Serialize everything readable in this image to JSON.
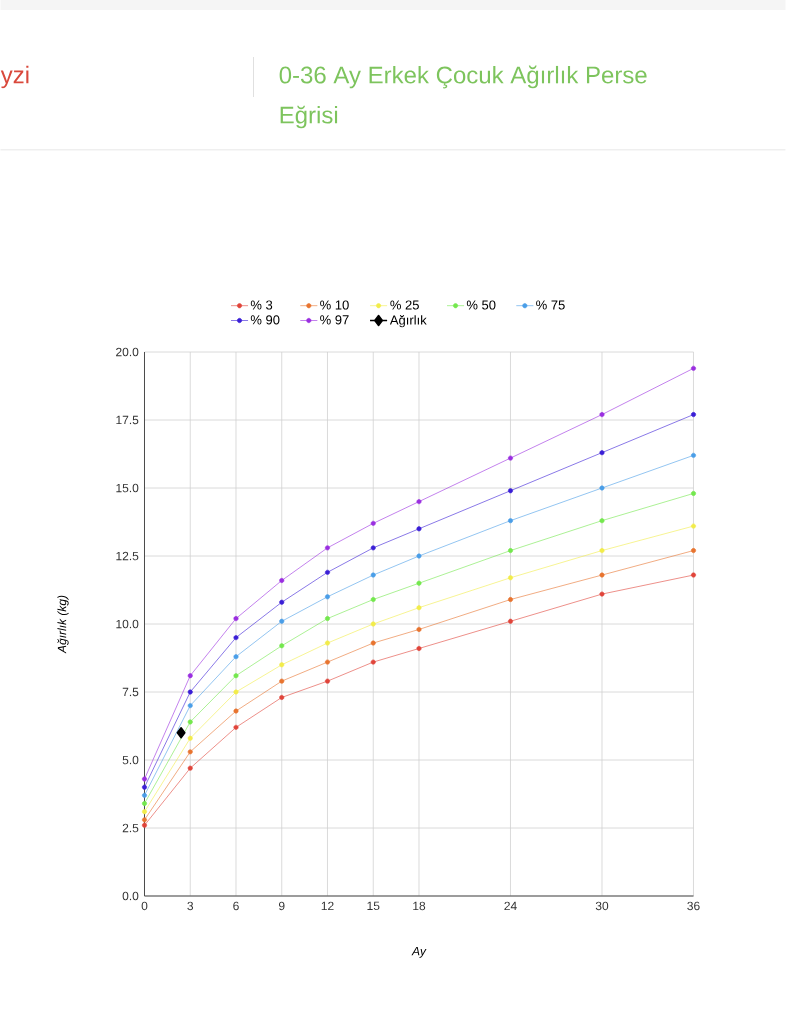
{
  "chart_data": {
    "type": "line",
    "title": "0-36 Ay Erkek Çocuk Ağırlık Perse",
    "subtitle": "Eğrisi",
    "annotations": [
      "yzi"
    ],
    "xlabel": "Ay",
    "ylabel": "Ağırlık (kg)",
    "xlim": [
      0,
      36
    ],
    "xticks": [
      0,
      3,
      6,
      9,
      12,
      15,
      18,
      24,
      30,
      36
    ],
    "ylim": [
      0,
      20
    ],
    "yticks": [
      {
        "value": 0,
        "label": "0.0"
      },
      2.5,
      {
        "value": 5,
        "label": "5.0"
      },
      7.5,
      {
        "value": 10,
        "label": "10.0"
      },
      12.5,
      {
        "value": 15,
        "label": "15.0"
      },
      17.5,
      {
        "value": 20,
        "label": "20.0"
      }
    ],
    "grid": true,
    "legend": "top",
    "marker": "circle",
    "line_style": "solid",
    "x": [
      0,
      3,
      6,
      9,
      12,
      15,
      18,
      24,
      30,
      36
    ],
    "series": [
      {
        "name": "% 3",
        "color": "#e0443a",
        "values": [
          2.6,
          4.7,
          6.2,
          7.3,
          7.9,
          8.6,
          9.1,
          10.1,
          11.1,
          11.8
        ]
      },
      {
        "name": "% 10",
        "color": "#e8742f",
        "values": [
          2.8,
          5.3,
          6.8,
          7.9,
          8.6,
          9.3,
          9.8,
          10.9,
          11.8,
          12.7
        ]
      },
      {
        "name": "% 25",
        "color": "#f2ec4a",
        "values": [
          3.1,
          5.8,
          7.5,
          8.5,
          9.3,
          10.0,
          10.6,
          11.7,
          12.7,
          13.6
        ]
      },
      {
        "name": "% 50",
        "color": "#74e84e",
        "values": [
          3.4,
          6.4,
          8.1,
          9.2,
          10.2,
          10.9,
          11.5,
          12.7,
          13.8,
          14.8
        ]
      },
      {
        "name": "% 75",
        "color": "#4a9ee8",
        "values": [
          3.7,
          7.0,
          8.8,
          10.1,
          11.0,
          11.8,
          12.5,
          13.8,
          15.0,
          16.2
        ]
      },
      {
        "name": "% 90",
        "color": "#3a1fd6",
        "values": [
          4.0,
          7.5,
          9.5,
          10.8,
          11.9,
          12.8,
          13.5,
          14.9,
          16.3,
          17.7
        ]
      },
      {
        "name": "% 97",
        "color": "#9a2ee0",
        "values": [
          4.3,
          8.1,
          10.2,
          11.6,
          12.8,
          13.7,
          14.5,
          16.1,
          17.7,
          19.4
        ]
      },
      {
        "name": "Ağırlık",
        "color": "#000000",
        "type": "line",
        "marker": "diamond",
        "x": [
          2.4
        ],
        "values": [
          6.0
        ]
      }
    ]
  }
}
